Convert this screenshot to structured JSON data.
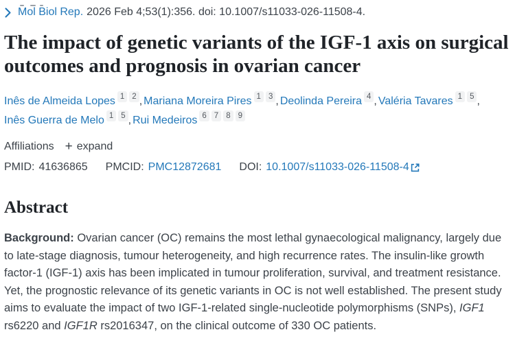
{
  "theme": {
    "link_color": "#2378b9",
    "text_color": "#3c4249",
    "title_color": "#1f2328",
    "chip_bg": "#f1f2f3"
  },
  "citation": {
    "chevron_icon": "chevron-right",
    "journal_link": "Mol Biol Rep.",
    "rest": "2026 Feb 4;53(1):356. doi: 10.1007/s11033-026-11508-4."
  },
  "title": "The impact of genetic variants of the IGF-1 axis on surgical outcomes and prognosis in ovarian cancer",
  "authors": [
    {
      "name": "Inês de Almeida Lopes",
      "affiliations": [
        "1",
        "2"
      ]
    },
    {
      "name": "Mariana Moreira Pires",
      "affiliations": [
        "1",
        "3"
      ]
    },
    {
      "name": "Deolinda Pereira",
      "affiliations": [
        "4"
      ]
    },
    {
      "name": "Valéria Tavares",
      "affiliations": [
        "1",
        "5"
      ]
    },
    {
      "name": "Inês Guerra de Melo",
      "affiliations": [
        "1",
        "5"
      ]
    },
    {
      "name": "Rui Medeiros",
      "affiliations": [
        "6",
        "7",
        "8",
        "9"
      ]
    }
  ],
  "affiliations_row": {
    "label": "Affiliations",
    "plus": "+",
    "expand_label": "expand"
  },
  "identifiers": [
    {
      "label": "PMID:",
      "value": "41636865"
    },
    {
      "label": "PMCID:",
      "value": "PMC12872681"
    },
    {
      "label": "DOI:",
      "value": "10.1007/s11033-026-11508-4"
    }
  ],
  "abstract": {
    "heading": "Abstract",
    "paragraph_runs": [
      {
        "text": "Background:",
        "bold": true
      },
      {
        "text": " Ovarian cancer (OC) remains the most lethal gynaecological malignancy, largely due to late-stage diagnosis, tumour heterogeneity, and high recurrence rates. The insulin-like growth factor-1 (IGF-1) axis has been implicated in tumour proliferation, survival, and treatment resistance. Yet, the prognostic relevance of its genetic variants in OC is not well established. The present study aims to evaluate the impact of two IGF-1-related single-nucleotide polymorphisms (SNPs), "
      },
      {
        "text": "IGF1",
        "italic": true
      },
      {
        "text": " rs6220 and "
      },
      {
        "text": "IGF1R",
        "italic": true
      },
      {
        "text": " rs2016347, on the clinical outcome of 330 OC patients."
      }
    ]
  }
}
